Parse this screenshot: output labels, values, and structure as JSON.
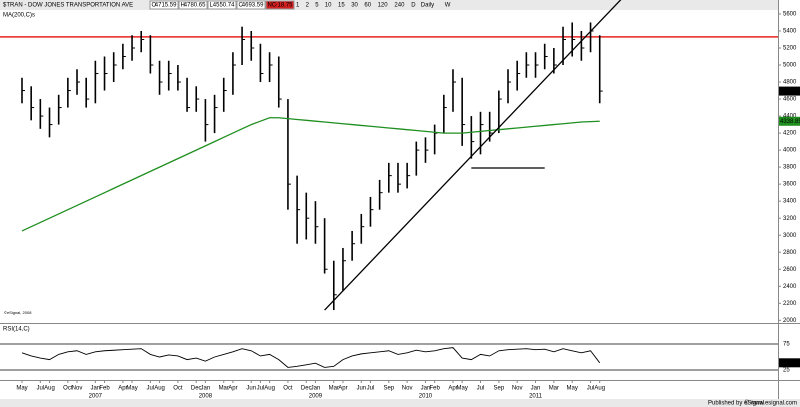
{
  "chart_data": {
    "type": "ohlc",
    "title": "$TRAN - DOW JONES TRANSPORTATION AVE",
    "quote": [
      {
        "label": "O",
        "value": 4715.59
      },
      {
        "label": "H",
        "value": 4780.65
      },
      {
        "label": "L",
        "value": 4550.74
      },
      {
        "label": "C",
        "value": 4693.59
      },
      {
        "label": "NC",
        "value": -18.75
      }
    ],
    "intervals": [
      "1",
      "2",
      "5",
      "10",
      "15",
      "30",
      "60",
      "120",
      "240",
      "D",
      "Daily",
      "W"
    ],
    "copyright": "©eSignal, 2008",
    "publisher": "Published by eSignal",
    "site": "© www.esignal.com",
    "x": [
      "2006-05",
      "2006-06",
      "2006-07",
      "2006-08",
      "2006-09",
      "2006-10",
      "2006-11",
      "2006-12",
      "2007-01",
      "2007-02",
      "2007-03",
      "2007-04",
      "2007-05",
      "2007-06",
      "2007-07",
      "2007-08",
      "2007-09",
      "2007-10",
      "2007-11",
      "2007-12",
      "2008-01",
      "2008-02",
      "2008-03",
      "2008-04",
      "2008-05",
      "2008-06",
      "2008-07",
      "2008-08",
      "2008-09",
      "2008-10",
      "2008-11",
      "2008-12",
      "2009-01",
      "2009-02",
      "2009-03",
      "2009-04",
      "2009-05",
      "2009-06",
      "2009-07",
      "2009-08",
      "2009-09",
      "2009-10",
      "2009-11",
      "2009-12",
      "2010-01",
      "2010-02",
      "2010-03",
      "2010-04",
      "2010-05",
      "2010-06",
      "2010-07",
      "2010-08",
      "2010-09",
      "2010-10",
      "2010-11",
      "2010-12",
      "2011-01",
      "2011-02",
      "2011-03",
      "2011-04",
      "2011-05",
      "2011-06",
      "2011-07",
      "2011-08"
    ],
    "high": [
      4850,
      4750,
      4600,
      4500,
      4650,
      4850,
      4950,
      4850,
      5050,
      5100,
      5150,
      5250,
      5350,
      5400,
      5350,
      5050,
      5050,
      5000,
      4850,
      4750,
      4600,
      4650,
      4850,
      5150,
      5450,
      5400,
      5250,
      5150,
      5100,
      4600,
      3700,
      3500,
      3400,
      3200,
      2700,
      2850,
      3050,
      3250,
      3450,
      3650,
      3850,
      3850,
      3850,
      4100,
      4150,
      4300,
      4650,
      4950,
      4850,
      4400,
      4450,
      4450,
      4700,
      4950,
      5050,
      5150,
      5150,
      5250,
      5200,
      5450,
      5500,
      5400,
      5500,
      5350
    ],
    "low": [
      4550,
      4350,
      4250,
      4150,
      4300,
      4500,
      4650,
      4500,
      4550,
      4700,
      4800,
      4950,
      5050,
      5150,
      4900,
      4650,
      4700,
      4700,
      4450,
      4450,
      4100,
      4200,
      4450,
      4650,
      5000,
      5050,
      4800,
      4800,
      4500,
      3300,
      2900,
      2950,
      2900,
      2550,
      2120,
      2350,
      2700,
      2900,
      3100,
      3300,
      3500,
      3500,
      3550,
      3700,
      3850,
      3950,
      4200,
      4450,
      4050,
      3900,
      3950,
      4100,
      4200,
      4550,
      4700,
      4850,
      4850,
      4950,
      4900,
      5000,
      5100,
      5050,
      5150,
      4550
    ],
    "close": [
      4700,
      4500,
      4400,
      4300,
      4500,
      4700,
      4800,
      4600,
      4900,
      4900,
      5000,
      5100,
      5200,
      5300,
      5000,
      4800,
      4900,
      4800,
      4500,
      4600,
      4300,
      4500,
      4700,
      5000,
      5300,
      5200,
      4900,
      5000,
      4600,
      3600,
      3300,
      3200,
      3100,
      2600,
      2300,
      2700,
      2900,
      3100,
      3300,
      3500,
      3700,
      3600,
      3700,
      4000,
      4000,
      4200,
      4500,
      4800,
      4300,
      4100,
      4300,
      4200,
      4600,
      4800,
      4900,
      5000,
      5000,
      5100,
      5000,
      5300,
      5300,
      5200,
      5400,
      4693.59
    ],
    "ma": {
      "name": "MA(200,C)s",
      "color": "#1f8f1f",
      "values": [
        3050,
        3100,
        3150,
        3200,
        3250,
        3300,
        3350,
        3400,
        3450,
        3500,
        3550,
        3600,
        3650,
        3700,
        3750,
        3800,
        3850,
        3900,
        3950,
        4000,
        4050,
        4100,
        4150,
        4200,
        4250,
        4300,
        4340,
        4380,
        4380,
        4370,
        4360,
        4350,
        4340,
        4330,
        4320,
        4310,
        4300,
        4290,
        4280,
        4270,
        4260,
        4250,
        4240,
        4230,
        4220,
        4210,
        4200,
        4200,
        4200,
        4210,
        4220,
        4230,
        4240,
        4250,
        4260,
        4270,
        4280,
        4290,
        4300,
        4310,
        4320,
        4330,
        4335,
        4338.85
      ]
    },
    "ylim": [
      1980,
      5670
    ],
    "yticks": [
      2000,
      2200,
      2400,
      2600,
      2800,
      3000,
      3200,
      3400,
      3600,
      3800,
      4000,
      4200,
      4400,
      4600,
      4800,
      5000,
      5200,
      5400,
      5600
    ],
    "resistance": {
      "value": 5330,
      "color": "#e8231c"
    },
    "trendline": {
      "x": [
        "2009-02",
        "2011-06"
      ],
      "values": [
        2120,
        5282
      ]
    },
    "support": {
      "x": [
        "2010-06",
        "2011-02"
      ],
      "values": [
        3790,
        3790
      ]
    },
    "rsi": {
      "name": "RSI(14,C)",
      "ylim": [
        0,
        100
      ],
      "yticks": [
        25,
        75
      ],
      "values": [
        58,
        52,
        48,
        45,
        55,
        60,
        62,
        55,
        60,
        62,
        63,
        64,
        65,
        66,
        55,
        50,
        54,
        52,
        45,
        48,
        42,
        50,
        55,
        60,
        66,
        62,
        52,
        55,
        45,
        30,
        32,
        35,
        38,
        30,
        32,
        45,
        52,
        56,
        58,
        60,
        62,
        55,
        58,
        63,
        60,
        62,
        66,
        68,
        48,
        45,
        55,
        52,
        62,
        64,
        65,
        66,
        64,
        65,
        60,
        66,
        62,
        58,
        62,
        38.83
      ]
    },
    "xticks": [
      {
        "value": "2006-05",
        "label": "May"
      },
      {
        "value": "2006-07",
        "label": "Jul"
      },
      {
        "value": "2006-08",
        "label": "Aug"
      },
      {
        "value": "2006-10",
        "label": "Oct"
      },
      {
        "value": "2006-11",
        "label": "Nov"
      },
      {
        "value": "2007-01",
        "label": "Jan"
      },
      {
        "value": "2007-02",
        "label": "Feb"
      },
      {
        "value": "2007-04",
        "label": "Apr"
      },
      {
        "value": "2007-05",
        "label": "May"
      },
      {
        "value": "2007-07",
        "label": "Jul"
      },
      {
        "value": "2007-08",
        "label": "Aug"
      },
      {
        "value": "2007-10",
        "label": "Oct"
      },
      {
        "value": "2007-12",
        "label": "Dec"
      },
      {
        "value": "2008-01",
        "label": "Jan"
      },
      {
        "value": "2008-03",
        "label": "Mar"
      },
      {
        "value": "2008-04",
        "label": "Apr"
      },
      {
        "value": "2008-06",
        "label": "Jun"
      },
      {
        "value": "2008-07",
        "label": "Jul"
      },
      {
        "value": "2008-08",
        "label": "Aug"
      },
      {
        "value": "2008-10",
        "label": "Oct"
      },
      {
        "value": "2008-12",
        "label": "Dec"
      },
      {
        "value": "2009-01",
        "label": "Jan"
      },
      {
        "value": "2009-03",
        "label": "Mar"
      },
      {
        "value": "2009-04",
        "label": "Apr"
      },
      {
        "value": "2009-06",
        "label": "Jun"
      },
      {
        "value": "2009-07",
        "label": "Jul"
      },
      {
        "value": "2009-09",
        "label": "Sep"
      },
      {
        "value": "2009-11",
        "label": "Nov"
      },
      {
        "value": "2010-01",
        "label": "Jan"
      },
      {
        "value": "2010-02",
        "label": "Feb"
      },
      {
        "value": "2010-04",
        "label": "Apr"
      },
      {
        "value": "2010-05",
        "label": "May"
      },
      {
        "value": "2010-07",
        "label": "Jul"
      },
      {
        "value": "2010-09",
        "label": "Sep"
      },
      {
        "value": "2010-11",
        "label": "Nov"
      },
      {
        "value": "2011-01",
        "label": "Jan"
      },
      {
        "value": "2011-03",
        "label": "Mar"
      },
      {
        "value": "2011-05",
        "label": "May"
      },
      {
        "value": "2011-07",
        "label": "Jul"
      },
      {
        "value": "2011-08",
        "label": "Aug"
      }
    ],
    "years": [
      {
        "value": "2007-01",
        "label": "2007"
      },
      {
        "value": "2008-01",
        "label": "2008"
      },
      {
        "value": "2009-01",
        "label": "2009"
      },
      {
        "value": "2010-01",
        "label": "2010"
      },
      {
        "value": "2011-01",
        "label": "2011"
      }
    ]
  }
}
